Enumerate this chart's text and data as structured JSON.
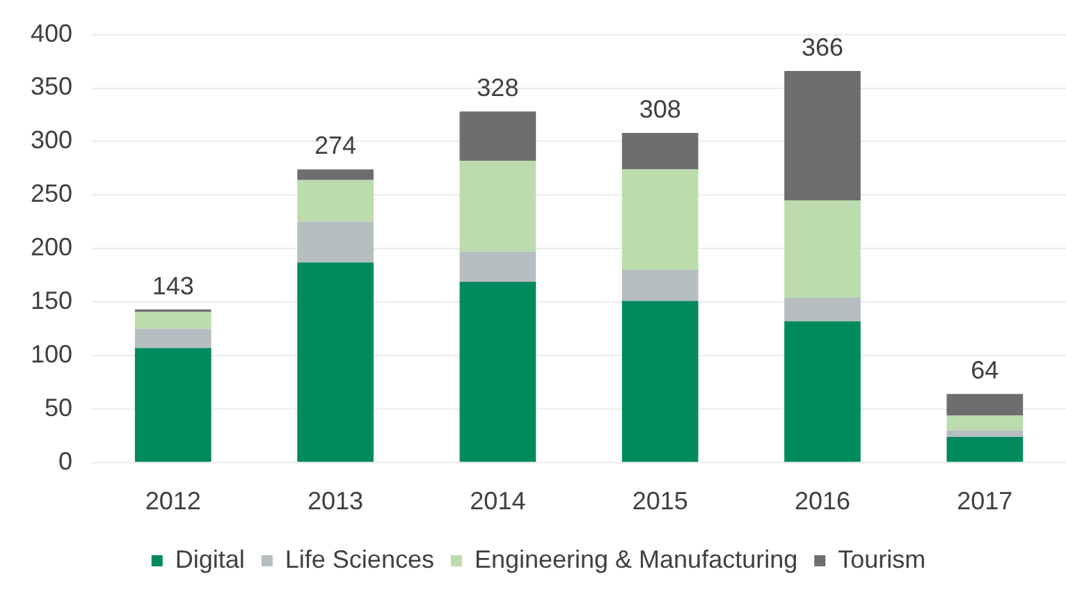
{
  "chart_data": {
    "type": "bar",
    "stacked": true,
    "categories": [
      "2012",
      "2013",
      "2014",
      "2015",
      "2016",
      "2017"
    ],
    "series": [
      {
        "name": "Digital",
        "color": "#008a5e",
        "values": [
          107,
          187,
          169,
          151,
          132,
          24
        ]
      },
      {
        "name": "Life Sciences",
        "color": "#b6bec2",
        "values": [
          18,
          38,
          28,
          29,
          22,
          6
        ]
      },
      {
        "name": "Engineering & Manufacturing",
        "color": "#bcdcae",
        "values": [
          16,
          39,
          85,
          94,
          91,
          14
        ]
      },
      {
        "name": "Tourism",
        "color": "#6e6e6e",
        "values": [
          2,
          10,
          46,
          34,
          121,
          20
        ]
      }
    ],
    "ylim": [
      0,
      400
    ],
    "yticks": [
      0,
      50,
      100,
      150,
      200,
      250,
      300,
      350,
      400
    ],
    "grid": "y",
    "legend": "bottom",
    "totals": [
      "143",
      "274",
      "328",
      "308",
      "366",
      "64"
    ]
  }
}
